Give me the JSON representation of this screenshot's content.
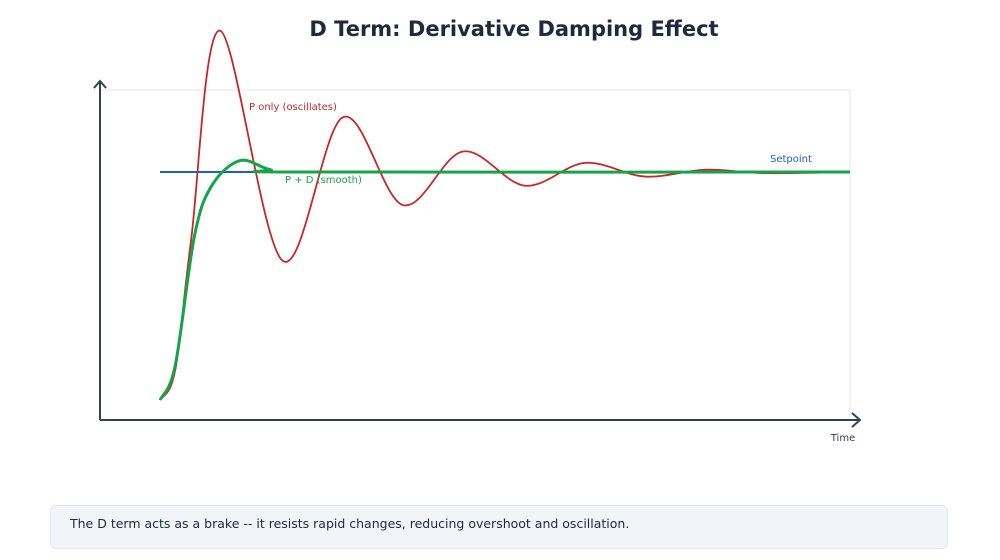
{
  "chart_data": {
    "type": "line",
    "title": "D Term: Derivative Damping Effect",
    "xlabel": "Time",
    "ylabel": "",
    "grid": false,
    "colors": {
      "p_only": "#c62828",
      "p_d": "#16a34a",
      "setpoint": "#1d5fc4",
      "axis": "#334155",
      "title": "#1e293b"
    },
    "series": [
      {
        "name": "P only (oscillates)",
        "points": [
          [
            0,
            0
          ],
          [
            0.22,
            0.13
          ],
          [
            0.45,
            0.7
          ],
          [
            0.87,
            1.62
          ],
          [
            1.78,
            0.61
          ],
          [
            2.65,
            1.24
          ],
          [
            3.52,
            0.855
          ],
          [
            4.39,
            1.09
          ],
          [
            5.29,
            0.94
          ],
          [
            6.16,
            1.04
          ],
          [
            7.03,
            0.98
          ],
          [
            7.9,
            1.01
          ],
          [
            8.77,
            0.995
          ],
          [
            10,
            1
          ]
        ]
      },
      {
        "name": "P + D (smooth)",
        "points": [
          [
            0,
            0
          ],
          [
            0.22,
            0.15
          ],
          [
            0.5,
            0.72
          ],
          [
            0.75,
            0.94
          ],
          [
            1.16,
            1.05
          ],
          [
            1.6,
            1.01
          ],
          [
            2.1,
            1.0
          ],
          [
            10,
            1
          ]
        ]
      },
      {
        "name": "Setpoint",
        "points": [
          [
            0,
            1
          ],
          [
            10,
            1
          ]
        ]
      }
    ]
  },
  "note": "The D term acts as a brake -- it resists rapid changes, reducing overshoot and oscillation."
}
